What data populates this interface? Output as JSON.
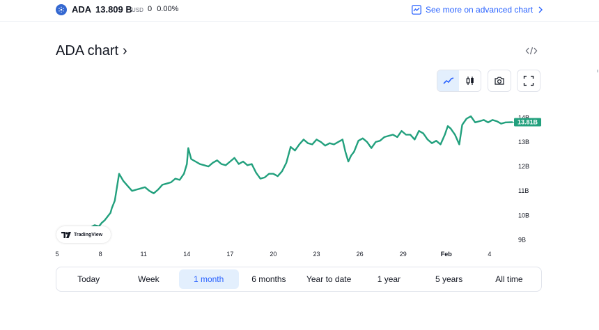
{
  "header": {
    "symbol": "ADA",
    "price": "13.809 B",
    "currency": "USD",
    "change_abs": "0",
    "change_pct": "0.00%",
    "advanced_link": "See more on advanced chart"
  },
  "title": "ADA chart",
  "title_arrow": "›",
  "toolbar": {
    "active_style": "line",
    "icons": [
      "line-chart-icon",
      "candles-icon",
      "camera-icon",
      "fullscreen-icon",
      "embed-code-icon"
    ]
  },
  "badge": {
    "label": "TradingView"
  },
  "ranges": [
    {
      "label": "Today",
      "active": false
    },
    {
      "label": "Week",
      "active": false
    },
    {
      "label": "1 month",
      "active": true
    },
    {
      "label": "6 months",
      "active": false
    },
    {
      "label": "Year to date",
      "active": false
    },
    {
      "label": "1 year",
      "active": false
    },
    {
      "label": "5 years",
      "active": false
    },
    {
      "label": "All time",
      "active": false
    }
  ],
  "colors": {
    "line": "#22a07d",
    "accent": "#2962ff",
    "active_bg": "#e3effd",
    "coin": "#3468d1"
  },
  "chart_data": {
    "type": "line",
    "ylabel": "",
    "xlabel": "",
    "x_ticks": [
      "5",
      "8",
      "11",
      "14",
      "17",
      "20",
      "23",
      "26",
      "29",
      "Feb",
      "4"
    ],
    "x_tick_positions": [
      5,
      8,
      11,
      14,
      17,
      20,
      23,
      26,
      29,
      32,
      35
    ],
    "y_ticks": [
      "9B",
      "10B",
      "11B",
      "12B",
      "13B",
      "14B"
    ],
    "y_tick_values": [
      9,
      10,
      11,
      12,
      13,
      14
    ],
    "ylim": [
      8.9,
      14.25
    ],
    "xlim": [
      5,
      36.6
    ],
    "last_value_label": "13.81B",
    "last_value": 13.81,
    "grid": false,
    "series": [
      {
        "name": "",
        "x": [
          5.0,
          5.5,
          6.0,
          6.5,
          7.0,
          7.3,
          7.6,
          7.9,
          8.1,
          8.3,
          8.5,
          8.7,
          8.8,
          9.0,
          9.3,
          9.6,
          9.9,
          10.2,
          10.5,
          10.8,
          11.1,
          11.4,
          11.7,
          12.0,
          12.3,
          12.6,
          12.9,
          13.2,
          13.5,
          13.8,
          14.0,
          14.1,
          14.3,
          14.6,
          14.9,
          15.2,
          15.5,
          15.8,
          16.1,
          16.4,
          16.7,
          17.0,
          17.3,
          17.6,
          17.9,
          18.2,
          18.5,
          18.8,
          19.1,
          19.4,
          19.7,
          20.0,
          20.3,
          20.6,
          20.9,
          21.2,
          21.5,
          21.8,
          22.1,
          22.4,
          22.7,
          23.0,
          23.3,
          23.6,
          23.9,
          24.2,
          24.5,
          24.8,
          25.0,
          25.2,
          25.4,
          25.6,
          25.9,
          26.2,
          26.5,
          26.8,
          27.1,
          27.4,
          27.7,
          28.0,
          28.3,
          28.6,
          28.9,
          29.2,
          29.5,
          29.8,
          30.1,
          30.4,
          30.7,
          31.0,
          31.3,
          31.6,
          31.9,
          32.1,
          32.3,
          32.6,
          32.9,
          33.1,
          33.4,
          33.7,
          34.0,
          34.3,
          34.6,
          34.9,
          35.2,
          35.5,
          35.8,
          36.1,
          36.6
        ],
        "values": [
          9.2,
          9.3,
          9.35,
          9.4,
          9.45,
          9.5,
          9.6,
          9.55,
          9.7,
          9.8,
          9.95,
          10.1,
          10.3,
          10.6,
          11.7,
          11.4,
          11.2,
          11.0,
          11.05,
          11.1,
          11.15,
          11.0,
          10.9,
          11.05,
          11.25,
          11.3,
          11.35,
          11.5,
          11.45,
          11.7,
          12.1,
          12.75,
          12.3,
          12.2,
          12.1,
          12.05,
          12.0,
          12.15,
          12.25,
          12.1,
          12.05,
          12.2,
          12.35,
          12.1,
          12.2,
          12.05,
          12.1,
          11.75,
          11.5,
          11.55,
          11.7,
          11.7,
          11.6,
          11.8,
          12.15,
          12.8,
          12.65,
          12.9,
          13.1,
          12.95,
          12.9,
          13.1,
          13.0,
          12.85,
          12.95,
          12.9,
          13.0,
          13.1,
          12.6,
          12.2,
          12.45,
          12.6,
          13.05,
          13.15,
          13.0,
          12.75,
          13.0,
          13.05,
          13.2,
          13.25,
          13.3,
          13.2,
          13.45,
          13.3,
          13.3,
          13.1,
          13.45,
          13.35,
          13.1,
          12.95,
          13.05,
          12.9,
          13.3,
          13.65,
          13.55,
          13.3,
          12.9,
          13.7,
          13.95,
          14.05,
          13.8,
          13.85,
          13.9,
          13.8,
          13.9,
          13.85,
          13.75,
          13.8,
          13.81
        ]
      }
    ]
  }
}
